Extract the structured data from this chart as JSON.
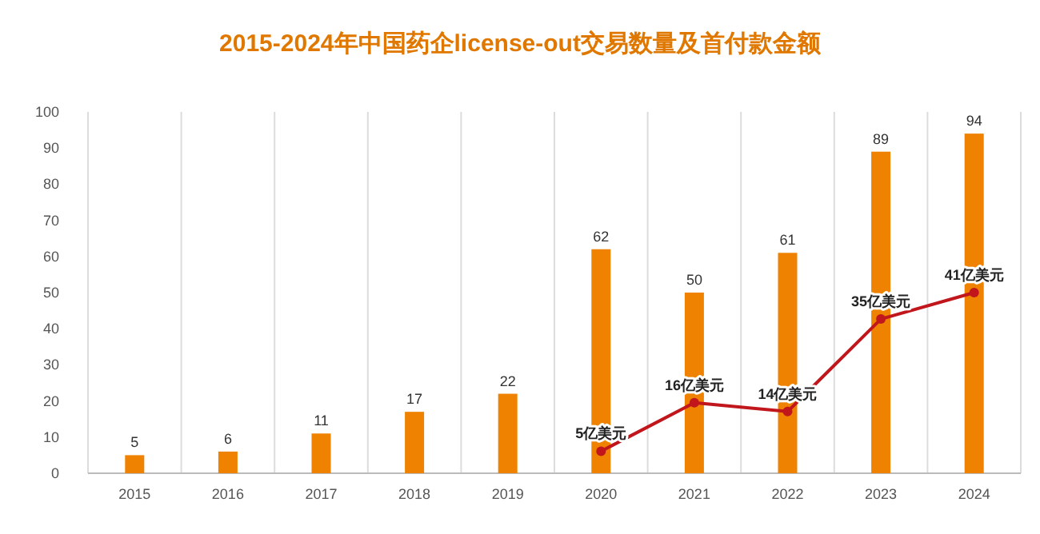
{
  "chart_data": {
    "type": "bar",
    "title": "2015-2024年中国药企license-out交易数量及首付款金额",
    "categories": [
      "2015",
      "2016",
      "2017",
      "2018",
      "2019",
      "2020",
      "2021",
      "2022",
      "2023",
      "2024"
    ],
    "series": [
      {
        "color": "#ef8200",
        "values": [
          5,
          6,
          11,
          17,
          22,
          62,
          50,
          61,
          89,
          94
        ],
        "data_labels": true
      },
      {
        "type": "line",
        "axis": "y2",
        "color": "#c0161c",
        "marker": "circle",
        "values": [
          null,
          null,
          null,
          null,
          null,
          5,
          16,
          14,
          35,
          41
        ],
        "value_labels": [
          null,
          null,
          null,
          null,
          null,
          "5亿美元",
          "16亿美元",
          "14亿美元",
          "35亿美元",
          "41亿美元"
        ]
      }
    ],
    "ylim": [
      0,
      100
    ],
    "yticks": [
      0,
      10,
      20,
      30,
      40,
      50,
      60,
      70,
      80,
      90,
      100
    ],
    "y2lim": [
      0,
      82
    ],
    "grid": "x",
    "legend": false
  }
}
